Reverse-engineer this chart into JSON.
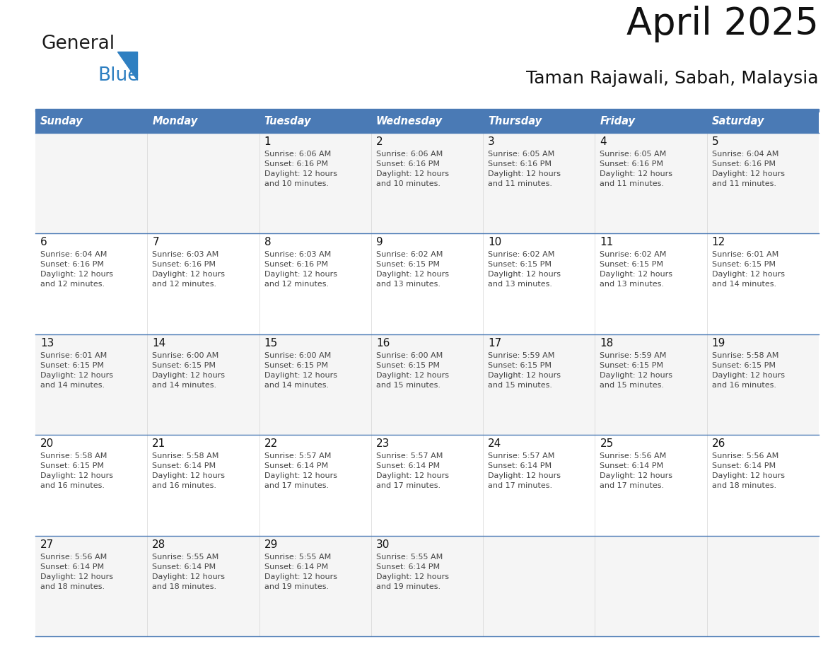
{
  "title": "April 2025",
  "subtitle": "Taman Rajawali, Sabah, Malaysia",
  "days_of_week": [
    "Sunday",
    "Monday",
    "Tuesday",
    "Wednesday",
    "Thursday",
    "Friday",
    "Saturday"
  ],
  "header_bg_color": "#4a7ab5",
  "header_text_color": "#ffffff",
  "row_bg_colors": [
    "#f5f5f5",
    "#ffffff",
    "#f5f5f5",
    "#ffffff",
    "#f5f5f5"
  ],
  "divider_color": "#4a7ab5",
  "text_color": "#444444",
  "day_number_color": "#111111",
  "logo_general_color": "#1a1a1a",
  "logo_blue_color": "#2e7fc1",
  "calendar_data": [
    [
      {
        "day": null,
        "sunrise": null,
        "sunset": null,
        "daylight_h": null,
        "daylight_m": null
      },
      {
        "day": null,
        "sunrise": null,
        "sunset": null,
        "daylight_h": null,
        "daylight_m": null
      },
      {
        "day": 1,
        "sunrise": "6:06 AM",
        "sunset": "6:16 PM",
        "daylight_h": "12 hours",
        "daylight_m": "10 minutes."
      },
      {
        "day": 2,
        "sunrise": "6:06 AM",
        "sunset": "6:16 PM",
        "daylight_h": "12 hours",
        "daylight_m": "10 minutes."
      },
      {
        "day": 3,
        "sunrise": "6:05 AM",
        "sunset": "6:16 PM",
        "daylight_h": "12 hours",
        "daylight_m": "11 minutes."
      },
      {
        "day": 4,
        "sunrise": "6:05 AM",
        "sunset": "6:16 PM",
        "daylight_h": "12 hours",
        "daylight_m": "11 minutes."
      },
      {
        "day": 5,
        "sunrise": "6:04 AM",
        "sunset": "6:16 PM",
        "daylight_h": "12 hours",
        "daylight_m": "11 minutes."
      }
    ],
    [
      {
        "day": 6,
        "sunrise": "6:04 AM",
        "sunset": "6:16 PM",
        "daylight_h": "12 hours",
        "daylight_m": "12 minutes."
      },
      {
        "day": 7,
        "sunrise": "6:03 AM",
        "sunset": "6:16 PM",
        "daylight_h": "12 hours",
        "daylight_m": "12 minutes."
      },
      {
        "day": 8,
        "sunrise": "6:03 AM",
        "sunset": "6:16 PM",
        "daylight_h": "12 hours",
        "daylight_m": "12 minutes."
      },
      {
        "day": 9,
        "sunrise": "6:02 AM",
        "sunset": "6:15 PM",
        "daylight_h": "12 hours",
        "daylight_m": "13 minutes."
      },
      {
        "day": 10,
        "sunrise": "6:02 AM",
        "sunset": "6:15 PM",
        "daylight_h": "12 hours",
        "daylight_m": "13 minutes."
      },
      {
        "day": 11,
        "sunrise": "6:02 AM",
        "sunset": "6:15 PM",
        "daylight_h": "12 hours",
        "daylight_m": "13 minutes."
      },
      {
        "day": 12,
        "sunrise": "6:01 AM",
        "sunset": "6:15 PM",
        "daylight_h": "12 hours",
        "daylight_m": "14 minutes."
      }
    ],
    [
      {
        "day": 13,
        "sunrise": "6:01 AM",
        "sunset": "6:15 PM",
        "daylight_h": "12 hours",
        "daylight_m": "14 minutes."
      },
      {
        "day": 14,
        "sunrise": "6:00 AM",
        "sunset": "6:15 PM",
        "daylight_h": "12 hours",
        "daylight_m": "14 minutes."
      },
      {
        "day": 15,
        "sunrise": "6:00 AM",
        "sunset": "6:15 PM",
        "daylight_h": "12 hours",
        "daylight_m": "14 minutes."
      },
      {
        "day": 16,
        "sunrise": "6:00 AM",
        "sunset": "6:15 PM",
        "daylight_h": "12 hours",
        "daylight_m": "15 minutes."
      },
      {
        "day": 17,
        "sunrise": "5:59 AM",
        "sunset": "6:15 PM",
        "daylight_h": "12 hours",
        "daylight_m": "15 minutes."
      },
      {
        "day": 18,
        "sunrise": "5:59 AM",
        "sunset": "6:15 PM",
        "daylight_h": "12 hours",
        "daylight_m": "15 minutes."
      },
      {
        "day": 19,
        "sunrise": "5:58 AM",
        "sunset": "6:15 PM",
        "daylight_h": "12 hours",
        "daylight_m": "16 minutes."
      }
    ],
    [
      {
        "day": 20,
        "sunrise": "5:58 AM",
        "sunset": "6:15 PM",
        "daylight_h": "12 hours",
        "daylight_m": "16 minutes."
      },
      {
        "day": 21,
        "sunrise": "5:58 AM",
        "sunset": "6:14 PM",
        "daylight_h": "12 hours",
        "daylight_m": "16 minutes."
      },
      {
        "day": 22,
        "sunrise": "5:57 AM",
        "sunset": "6:14 PM",
        "daylight_h": "12 hours",
        "daylight_m": "17 minutes."
      },
      {
        "day": 23,
        "sunrise": "5:57 AM",
        "sunset": "6:14 PM",
        "daylight_h": "12 hours",
        "daylight_m": "17 minutes."
      },
      {
        "day": 24,
        "sunrise": "5:57 AM",
        "sunset": "6:14 PM",
        "daylight_h": "12 hours",
        "daylight_m": "17 minutes."
      },
      {
        "day": 25,
        "sunrise": "5:56 AM",
        "sunset": "6:14 PM",
        "daylight_h": "12 hours",
        "daylight_m": "17 minutes."
      },
      {
        "day": 26,
        "sunrise": "5:56 AM",
        "sunset": "6:14 PM",
        "daylight_h": "12 hours",
        "daylight_m": "18 minutes."
      }
    ],
    [
      {
        "day": 27,
        "sunrise": "5:56 AM",
        "sunset": "6:14 PM",
        "daylight_h": "12 hours",
        "daylight_m": "18 minutes."
      },
      {
        "day": 28,
        "sunrise": "5:55 AM",
        "sunset": "6:14 PM",
        "daylight_h": "12 hours",
        "daylight_m": "18 minutes."
      },
      {
        "day": 29,
        "sunrise": "5:55 AM",
        "sunset": "6:14 PM",
        "daylight_h": "12 hours",
        "daylight_m": "19 minutes."
      },
      {
        "day": 30,
        "sunrise": "5:55 AM",
        "sunset": "6:14 PM",
        "daylight_h": "12 hours",
        "daylight_m": "19 minutes."
      },
      {
        "day": null,
        "sunrise": null,
        "sunset": null,
        "daylight_h": null,
        "daylight_m": null
      },
      {
        "day": null,
        "sunrise": null,
        "sunset": null,
        "daylight_h": null,
        "daylight_m": null
      },
      {
        "day": null,
        "sunrise": null,
        "sunset": null,
        "daylight_h": null,
        "daylight_m": null
      }
    ]
  ],
  "figsize": [
    11.88,
    9.18
  ],
  "dpi": 100
}
